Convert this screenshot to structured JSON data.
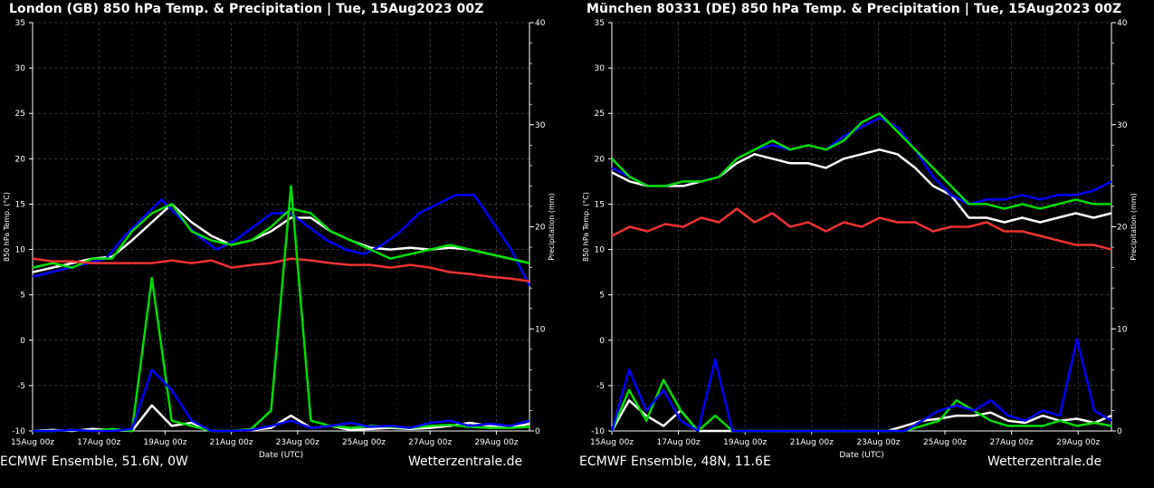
{
  "chart_data": [
    {
      "type": "line",
      "title": "London  (GB)  850 hPa Temp. & Precipitation | Tue, 15Aug2023 00Z",
      "ylabel": "850 hPa Temp. (°C)",
      "y2label": "Precipitation  (mm)",
      "xlabel": "Date (UTC)",
      "ylim": [
        -10,
        35
      ],
      "y2lim": [
        0,
        40
      ],
      "yticks": [
        "35",
        "30",
        "25",
        "20",
        "15",
        "10",
        "5",
        "0",
        "-5",
        "-10"
      ],
      "y2ticks": [
        "40",
        "30",
        "20",
        "10",
        "0"
      ],
      "xticks": [
        "15Aug 00z",
        "17Aug 00z",
        "19Aug 00z",
        "21Aug 00z",
        "23Aug 00z",
        "25Aug 00z",
        "27Aug 00z",
        "29Aug 00z"
      ],
      "x_days": 15,
      "grid": true,
      "footer_left": "ECMWF Ensemble, 51.6N, 0W",
      "footer_right": "Wetterzentrale.de",
      "series": [
        {
          "color": "#ffffff",
          "values": [
            7.5,
            8,
            8.5,
            9,
            9.2,
            11,
            13,
            15,
            13,
            11.5,
            10.5,
            11,
            12,
            13.5,
            13.5,
            12,
            11,
            10.2,
            10,
            10.2,
            10,
            10.2,
            10,
            9.5,
            9,
            8.5
          ]
        },
        {
          "color": "#0000ff",
          "values": [
            7,
            7.5,
            8,
            8.5,
            9,
            11.5,
            13.5,
            15.5,
            13.5,
            11.5,
            10,
            11,
            12.5,
            14,
            14,
            12.5,
            11,
            10,
            9.5,
            10.5,
            12,
            14,
            15,
            16,
            16,
            13,
            10,
            6
          ]
        },
        {
          "color": "#00dd00",
          "values": [
            8,
            8.5,
            8,
            9,
            9,
            12,
            14,
            15,
            12,
            11,
            10.5,
            11,
            12.5,
            14.5,
            14,
            12,
            11,
            10,
            9,
            9.5,
            10,
            10.5,
            10,
            9.5,
            9,
            8.5
          ]
        },
        {
          "color": "#ee3333",
          "values": [
            9,
            8.7,
            8.7,
            8.5,
            8.5,
            8.5,
            8.5,
            8.8,
            8.5,
            8.8,
            8,
            8.3,
            8.5,
            9,
            8.8,
            8.5,
            8.3,
            8.3,
            8,
            8.3,
            8,
            7.5,
            7.3,
            7,
            6.8,
            6.5
          ]
        }
      ],
      "precip_series": [
        {
          "color": "#ffffff",
          "values": [
            0,
            0.1,
            0,
            0.2,
            0.1,
            0,
            2.5,
            0.5,
            0.8,
            0,
            0,
            0.1,
            0.3,
            1.5,
            0.3,
            0.5,
            0.1,
            0.2,
            0.3,
            0.2,
            0.3,
            0.5,
            0.8,
            0.5,
            0.3,
            0.7
          ]
        },
        {
          "color": "#00dd00",
          "values": [
            0,
            0,
            0.1,
            0,
            0.2,
            0,
            15,
            1,
            0.5,
            0,
            0,
            0.2,
            2,
            24,
            1,
            0.5,
            0.3,
            0.5,
            0.4,
            0.3,
            0.5,
            0.6,
            0.4,
            0.3,
            0.3,
            0.4
          ]
        },
        {
          "color": "#0000ff",
          "values": [
            0,
            0,
            0.1,
            0,
            0,
            0.2,
            6,
            4,
            1,
            0,
            0,
            0.1,
            0.5,
            1,
            0.3,
            0.5,
            0.8,
            0.4,
            0.5,
            0.3,
            0.8,
            1,
            0.5,
            0.7,
            0.5,
            1
          ]
        }
      ]
    },
    {
      "type": "line",
      "title": "München 80331 (DE)  850 hPa Temp. & Precipitation | Tue, 15Aug2023 00Z",
      "ylabel": "850 hPa Temp. (°C)",
      "y2label": "Precipitation  (mm)",
      "xlabel": "Date (UTC)",
      "ylim": [
        -10,
        35
      ],
      "y2lim": [
        0,
        40
      ],
      "yticks": [
        "35",
        "30",
        "25",
        "20",
        "15",
        "10",
        "5",
        "0",
        "-5",
        "-10"
      ],
      "y2ticks": [
        "40",
        "30",
        "20",
        "10",
        "0"
      ],
      "xticks": [
        "15Aug 00z",
        "17Aug 00z",
        "19Aug 00z",
        "21Aug 00z",
        "23Aug 00z",
        "25Aug 00z",
        "27Aug 00z",
        "29Aug 00z"
      ],
      "x_days": 15,
      "grid": true,
      "footer_left": "ECMWF Ensemble, 48N, 11.6E",
      "footer_right": "Wetterzentrale.de",
      "series": [
        {
          "color": "#ffffff",
          "values": [
            18.5,
            17.5,
            17,
            17,
            17,
            17.5,
            18,
            19.5,
            20.5,
            20,
            19.5,
            19.5,
            19,
            20,
            20.5,
            21,
            20.5,
            19,
            17,
            16,
            13.5,
            13.5,
            13,
            13.5,
            13,
            13.5,
            14,
            13.5,
            14
          ]
        },
        {
          "color": "#0000ff",
          "values": [
            19,
            18,
            17,
            17,
            17.5,
            17.5,
            18,
            20,
            21,
            21.5,
            21,
            21.5,
            21,
            22.5,
            23.5,
            24.5,
            23.5,
            21,
            18,
            16,
            15,
            15.5,
            15.5,
            16,
            15.5,
            16,
            16,
            16.5,
            17.5
          ]
        },
        {
          "color": "#00dd00",
          "values": [
            20,
            18,
            17,
            17,
            17.5,
            17.5,
            18,
            20,
            21,
            22,
            21,
            21.5,
            21,
            22,
            24,
            25,
            23,
            21,
            19,
            17,
            15,
            15,
            14.5,
            15,
            14.5,
            15,
            15.5,
            15,
            15
          ]
        },
        {
          "color": "#ee3333",
          "values": [
            11.5,
            12.5,
            12,
            12.8,
            12.5,
            13.5,
            13,
            14.5,
            13,
            14,
            12.5,
            13,
            12,
            13,
            12.5,
            13.5,
            13,
            13,
            12,
            12.5,
            12.5,
            13,
            12,
            12,
            11.5,
            11,
            10.5,
            10.5,
            10
          ]
        }
      ],
      "precip_series": [
        {
          "color": "#ffffff",
          "values": [
            0,
            3,
            1.5,
            0.5,
            2,
            0,
            0,
            0,
            0,
            0,
            0,
            0,
            0,
            0,
            0,
            0,
            0,
            0.5,
            1,
            1.2,
            1.5,
            1.5,
            1.8,
            1,
            0.8,
            1.5,
            1,
            1.2,
            0.8,
            1.5
          ]
        },
        {
          "color": "#00dd00",
          "values": [
            0,
            4,
            1,
            5,
            2,
            0,
            1.5,
            0,
            0,
            0,
            0,
            0,
            0,
            0,
            0,
            0,
            0,
            0,
            0.5,
            1,
            3,
            2,
            1,
            0.5,
            0.5,
            0.5,
            1,
            0.5,
            0.8,
            0.5
          ]
        },
        {
          "color": "#0000ff",
          "values": [
            0,
            6,
            2,
            4,
            1,
            0,
            7,
            0,
            0,
            0,
            0,
            0,
            0,
            0,
            0,
            0,
            0,
            0,
            1,
            2,
            2.5,
            2,
            3,
            1.5,
            1,
            2,
            1.5,
            9,
            2,
            1
          ]
        }
      ]
    }
  ]
}
